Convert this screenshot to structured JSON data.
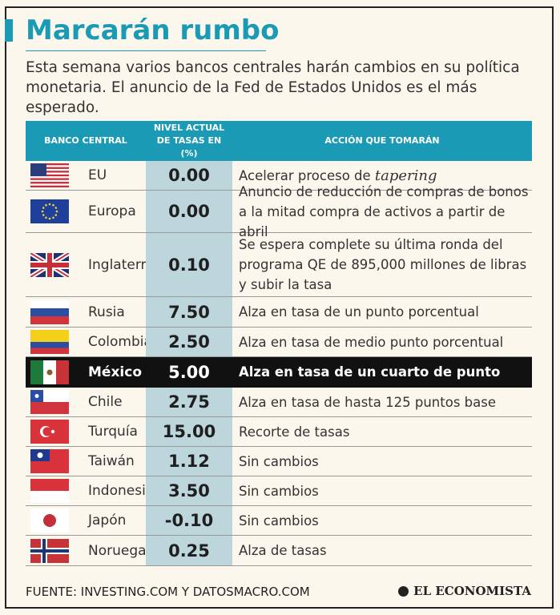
{
  "title": "Marcarán rumbo",
  "subtitle": "Esta semana varios bancos centrales harán cambios en su política monetaria. El anuncio de la Fed de Estados Unidos es el más esperado.",
  "table": {
    "headers": {
      "bank": "BANCO CENTRAL",
      "rate": "NIVEL ACTUAL DE TASAS EN (%)",
      "action": "ACCIÓN QUE TOMARÁN"
    },
    "rows": [
      {
        "country": "EU",
        "flag": "usa-flag",
        "rate": "0.00",
        "action": "Acelerar proceso de ",
        "action_italic": "tapering"
      },
      {
        "country": "Europa",
        "flag": "eu-flag",
        "rate": "0.00",
        "action": "Anuncio de reducción de compras de bonos a la mitad compra de activos a partir de abril"
      },
      {
        "country": "Inglaterra",
        "flag": "uk-flag",
        "rate": "0.10",
        "action": "Se espera complete su última ronda del programa QE de 895,000 millones de libras y subir la tasa"
      },
      {
        "country": "Rusia",
        "flag": "russia-flag",
        "rate": "7.50",
        "action": "Alza en tasa de un punto porcentual"
      },
      {
        "country": "Colombia",
        "flag": "colombia-flag",
        "rate": "2.50",
        "action": "Alza en tasa de medio punto porcentual"
      },
      {
        "country": "México",
        "flag": "mexico-flag",
        "rate": "5.00",
        "action": "Alza en tasa de un cuarto de punto",
        "highlight": true
      },
      {
        "country": "Chile",
        "flag": "chile-flag",
        "rate": "2.75",
        "action": "Alza en tasa de hasta 125 puntos base"
      },
      {
        "country": "Turquía",
        "flag": "turkey-flag",
        "rate": "15.00",
        "action": "Recorte de tasas"
      },
      {
        "country": "Taiwán",
        "flag": "taiwan-flag",
        "rate": "1.12",
        "action": "Sin cambios"
      },
      {
        "country": "Indonesia",
        "flag": "indonesia-flag",
        "rate": "3.50",
        "action": "Sin cambios"
      },
      {
        "country": "Japón",
        "flag": "japan-flag",
        "rate": "-0.10",
        "action": "Sin cambios"
      },
      {
        "country": "Noruega",
        "flag": "norway-flag",
        "rate": "0.25",
        "action": "Alza de tasas"
      }
    ]
  },
  "source": "FUENTE: INVESTING.COM Y DATOSMACRO.COM",
  "brand": "EL ECONOMISTA",
  "colors": {
    "accent": "#1a9ab5",
    "rate_column": "#bcd6dc",
    "highlight_row": "#111111",
    "background": "#fbf7ec"
  }
}
